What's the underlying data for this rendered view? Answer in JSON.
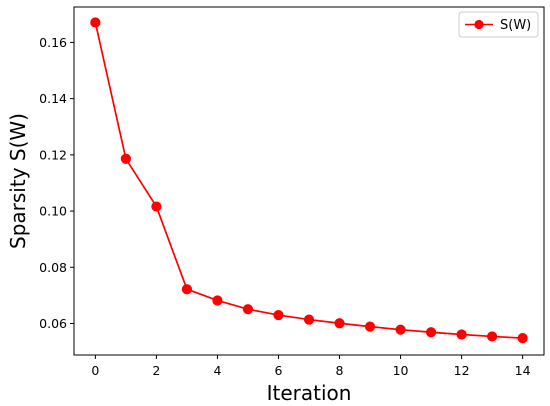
{
  "chart_data": {
    "type": "line",
    "title": "",
    "xlabel": "Iteration",
    "ylabel": "Sparsity S(W)",
    "xlim": [
      -0.7,
      14.7
    ],
    "ylim": [
      0.0488,
      0.1726
    ],
    "xticks": [
      0,
      2,
      4,
      6,
      8,
      10,
      12,
      14
    ],
    "xtick_labels": [
      "0",
      "2",
      "4",
      "6",
      "8",
      "10",
      "12",
      "14"
    ],
    "yticks": [
      0.06,
      0.08,
      0.1,
      0.12,
      0.14,
      0.16
    ],
    "ytick_labels": [
      "0.06",
      "0.08",
      "0.10",
      "0.12",
      "0.14",
      "0.16"
    ],
    "grid": false,
    "legend_position": "top-right",
    "series": [
      {
        "name": "S(W)",
        "color": "#ff0000",
        "marker": "circle",
        "x": [
          0,
          1,
          2,
          3,
          4,
          5,
          6,
          7,
          8,
          9,
          10,
          11,
          12,
          13,
          14
        ],
        "y": [
          0.1671,
          0.1186,
          0.1016,
          0.0722,
          0.0682,
          0.0651,
          0.063,
          0.0614,
          0.0601,
          0.0589,
          0.0578,
          0.0569,
          0.0561,
          0.0554,
          0.0548
        ]
      }
    ]
  }
}
